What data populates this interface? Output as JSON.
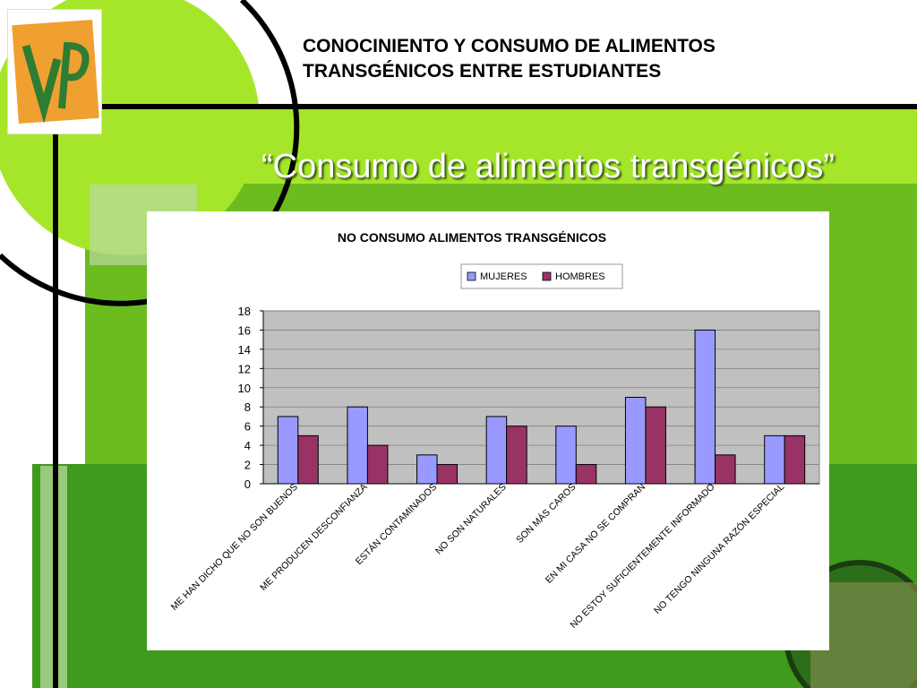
{
  "header": {
    "title_line1": "CONOCINIENTO Y CONSUMO DE ALIMENTOS",
    "title_line2": "TRANSGÉNICOS ENTRE ESTUDIANTES"
  },
  "slide": {
    "subtitle": "“Consumo de alimentos transgénicos”"
  },
  "colors": {
    "lime": "#a6e62a",
    "green": "#6cbc1f",
    "dark_green": "#3f9a1d",
    "mujeres": "#9999ff",
    "hombres": "#993366",
    "plot_bg": "#c0c0c0"
  },
  "chart_data": {
    "type": "bar",
    "title": "NO CONSUMO ALIMENTOS TRANSGÉNICOS",
    "categories": [
      "ME HAN DICHO QUE NO SON BUENOS",
      "ME PRODUCEN DESCONFIANZA",
      "ESTÁN CONTAMINADOS",
      "NO SON NATURALES",
      "SON MÁS CAROS",
      "EN MI CASA NO SE COMPRAN",
      "NO ESTOY SUFICIENTEMENTE INFORMADO",
      "NO TENGO NINGUNA RAZÓN ESPECIAL"
    ],
    "series": [
      {
        "name": "MUJERES",
        "color": "#9999ff",
        "values": [
          7,
          8,
          3,
          7,
          6,
          9,
          16,
          5
        ]
      },
      {
        "name": "HOMBRES",
        "color": "#993366",
        "values": [
          5,
          4,
          2,
          6,
          2,
          8,
          3,
          5
        ]
      }
    ],
    "ylim": [
      0,
      18
    ],
    "yticks": [
      0,
      2,
      4,
      6,
      8,
      10,
      12,
      14,
      16,
      18
    ],
    "grid": true,
    "legend_position": "top-right"
  }
}
